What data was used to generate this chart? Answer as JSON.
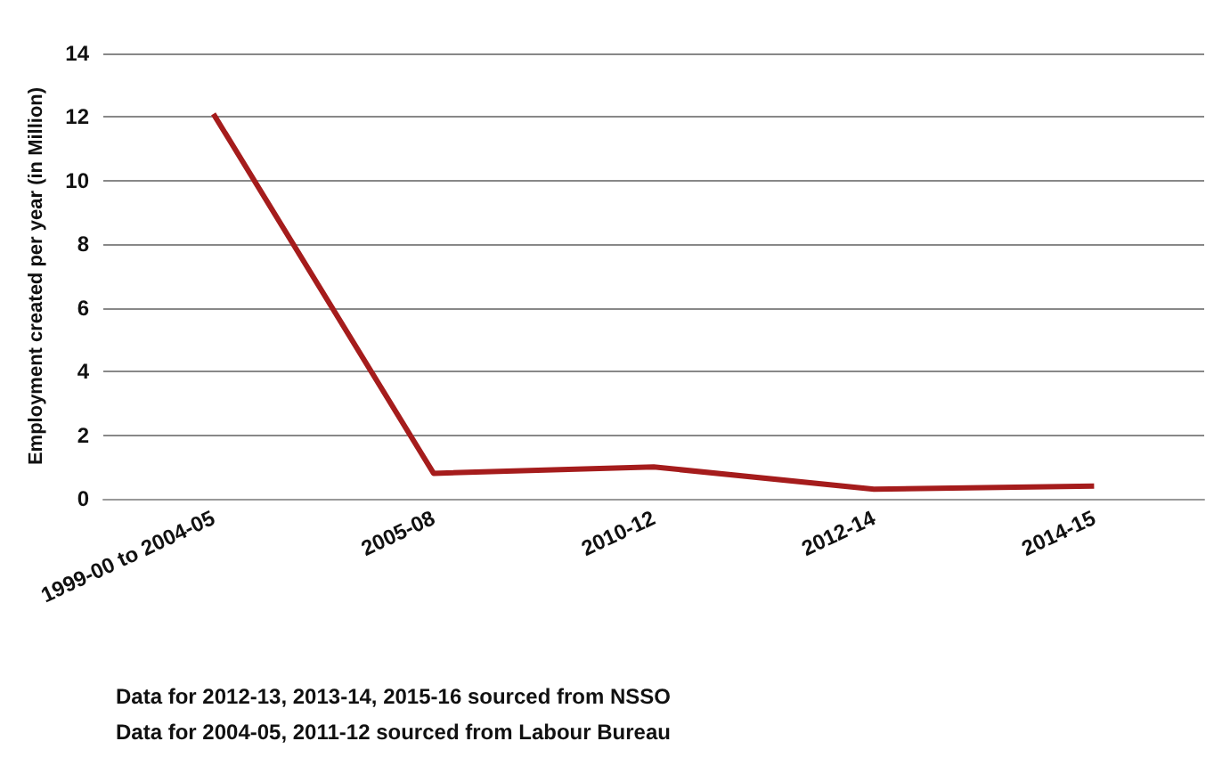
{
  "chart_data": {
    "type": "line",
    "ylabel": "Employment created per year (in Million)",
    "categories": [
      "1999-00 to 2004-05",
      "2005-08",
      "2010-12",
      "2012-14",
      "2014-15"
    ],
    "series": [
      {
        "color": "#a51c1c",
        "values": [
          12.1,
          0.8,
          1.0,
          0.3,
          0.4
        ]
      }
    ],
    "ylim": [
      0,
      14
    ],
    "yticks": [
      0,
      2,
      4,
      6,
      8,
      10,
      12,
      14
    ],
    "grid": "y",
    "marker": "none",
    "line_style": "solid",
    "annotations": [
      "Data for 2012-13, 2013-14, 2015-16 sourced from NSSO",
      "Data for 2004-05, 2011-12 sourced from Labour Bureau"
    ]
  }
}
